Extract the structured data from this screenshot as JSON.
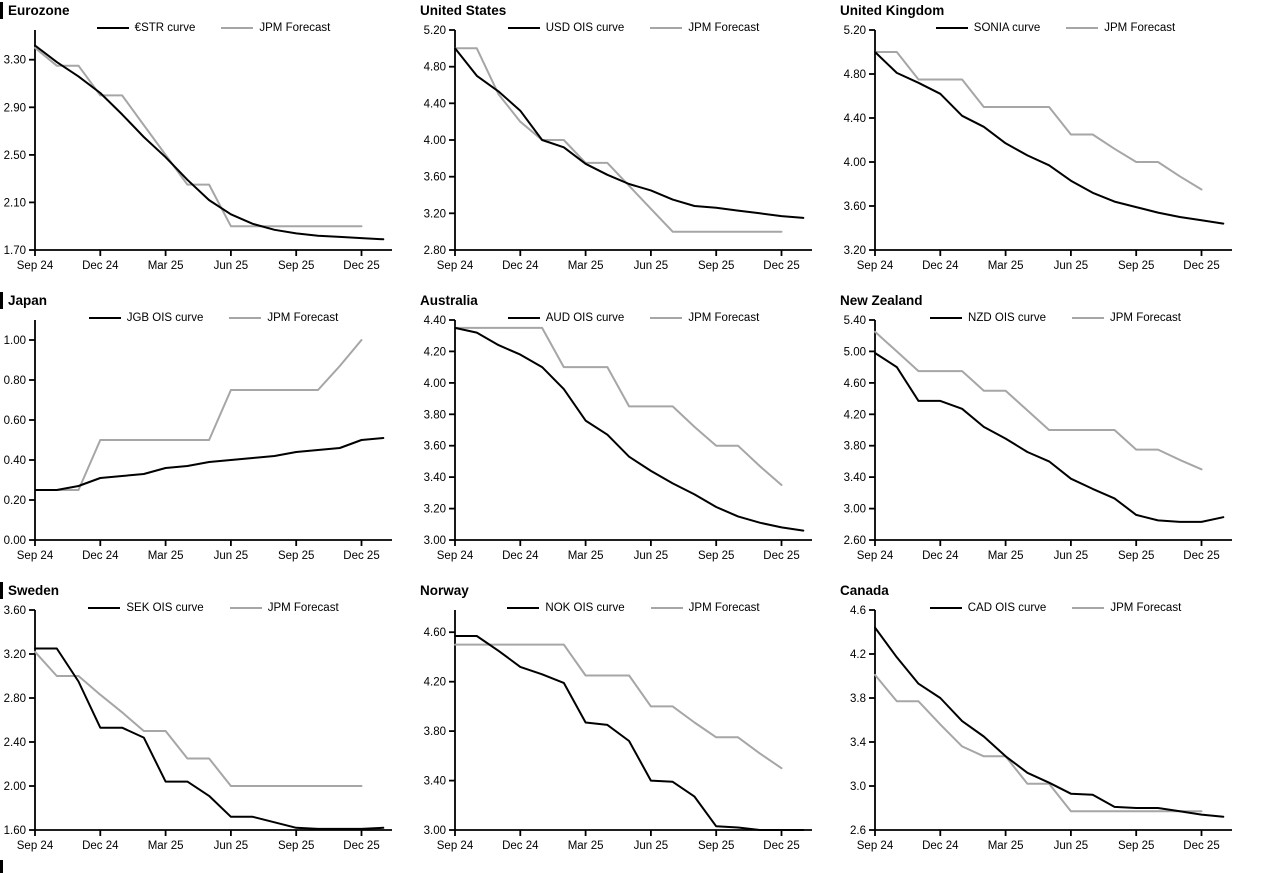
{
  "page": {
    "background": "#ffffff"
  },
  "colors": {
    "curve": "#000000",
    "forecast": "#a6a6a6",
    "axis": "#000000"
  },
  "chart_data": [
    {
      "title": "Eurozone",
      "type": "line",
      "x_tick_labels": [
        "Sep 24",
        "Dec 24",
        "Mar 25",
        "Jun 25",
        "Sep 25",
        "Dec 25"
      ],
      "x_tick_positions": [
        0,
        3,
        6,
        9,
        12,
        15
      ],
      "xlim": [
        0,
        16.4
      ],
      "ylim": [
        1.7,
        3.55
      ],
      "y_tick_values": [
        1.7,
        2.1,
        2.5,
        2.9,
        3.3
      ],
      "y_tick_labels": [
        "1.70",
        "2.10",
        "2.50",
        "2.90",
        "3.30"
      ],
      "grid": false,
      "legend_position": "top",
      "series": [
        {
          "name": "€STR curve",
          "color": "#000000",
          "values": [
            3.42,
            3.28,
            3.16,
            3.02,
            2.84,
            2.65,
            2.48,
            2.29,
            2.12,
            2.0,
            1.92,
            1.87,
            1.84,
            1.82,
            1.81,
            1.8,
            1.79
          ]
        },
        {
          "name": "JPM Forecast",
          "color": "#a6a6a6",
          "values": [
            3.4,
            3.25,
            3.25,
            3.0,
            3.0,
            2.75,
            2.5,
            2.25,
            2.25,
            1.9,
            1.9,
            1.9,
            1.9,
            1.9,
            1.9,
            1.9
          ]
        }
      ]
    },
    {
      "title": "United States",
      "type": "line",
      "x_tick_labels": [
        "Sep 24",
        "Dec 24",
        "Mar 25",
        "Jun 25",
        "Sep 25",
        "Dec 25"
      ],
      "x_tick_positions": [
        0,
        3,
        6,
        9,
        12,
        15
      ],
      "xlim": [
        0,
        16.4
      ],
      "ylim": [
        2.8,
        5.2
      ],
      "y_tick_values": [
        2.8,
        3.2,
        3.6,
        4.0,
        4.4,
        4.8,
        5.2
      ],
      "y_tick_labels": [
        "2.80",
        "3.20",
        "3.60",
        "4.00",
        "4.40",
        "4.80",
        "5.20"
      ],
      "grid": false,
      "legend_position": "top",
      "series": [
        {
          "name": "USD OIS curve",
          "color": "#000000",
          "values": [
            5.0,
            4.7,
            4.53,
            4.32,
            4.0,
            3.92,
            3.74,
            3.62,
            3.52,
            3.45,
            3.35,
            3.28,
            3.26,
            3.23,
            3.2,
            3.17,
            3.15
          ]
        },
        {
          "name": "JPM Forecast",
          "color": "#a6a6a6",
          "values": [
            5.0,
            5.0,
            4.5,
            4.2,
            4.0,
            4.0,
            3.75,
            3.75,
            3.5,
            3.25,
            3.0,
            3.0,
            3.0,
            3.0,
            3.0,
            3.0
          ]
        }
      ]
    },
    {
      "title": "United Kingdom",
      "type": "line",
      "x_tick_labels": [
        "Sep 24",
        "Dec 24",
        "Mar 25",
        "Jun 25",
        "Sep 25",
        "Dec 25"
      ],
      "x_tick_positions": [
        0,
        3,
        6,
        9,
        12,
        15
      ],
      "xlim": [
        0,
        16.4
      ],
      "ylim": [
        3.2,
        5.2
      ],
      "y_tick_values": [
        3.2,
        3.6,
        4.0,
        4.4,
        4.8,
        5.2
      ],
      "y_tick_labels": [
        "3.20",
        "3.60",
        "4.00",
        "4.40",
        "4.80",
        "5.20"
      ],
      "grid": false,
      "legend_position": "top",
      "series": [
        {
          "name": "SONIA curve",
          "color": "#000000",
          "values": [
            5.0,
            4.81,
            4.72,
            4.62,
            4.42,
            4.32,
            4.17,
            4.06,
            3.97,
            3.83,
            3.72,
            3.64,
            3.59,
            3.54,
            3.5,
            3.47,
            3.44
          ]
        },
        {
          "name": "JPM Forecast",
          "color": "#a6a6a6",
          "values": [
            5.0,
            5.0,
            4.75,
            4.75,
            4.75,
            4.5,
            4.5,
            4.5,
            4.5,
            4.25,
            4.25,
            4.12,
            4.0,
            4.0,
            3.87,
            3.75
          ]
        }
      ]
    },
    {
      "title": "Japan",
      "type": "line",
      "x_tick_labels": [
        "Sep 24",
        "Dec 24",
        "Mar 25",
        "Jun 25",
        "Sep 25",
        "Dec 25"
      ],
      "x_tick_positions": [
        0,
        3,
        6,
        9,
        12,
        15
      ],
      "xlim": [
        0,
        16.4
      ],
      "ylim": [
        0.0,
        1.1
      ],
      "y_tick_values": [
        0.0,
        0.2,
        0.4,
        0.6,
        0.8,
        1.0
      ],
      "y_tick_labels": [
        "0.00",
        "0.20",
        "0.40",
        "0.60",
        "0.80",
        "1.00"
      ],
      "grid": false,
      "legend_position": "top",
      "series": [
        {
          "name": "JGB OIS curve",
          "color": "#000000",
          "values": [
            0.25,
            0.25,
            0.27,
            0.31,
            0.32,
            0.33,
            0.36,
            0.37,
            0.39,
            0.4,
            0.41,
            0.42,
            0.44,
            0.45,
            0.46,
            0.5,
            0.51
          ]
        },
        {
          "name": "JPM Forecast",
          "color": "#a6a6a6",
          "values": [
            0.25,
            0.25,
            0.25,
            0.5,
            0.5,
            0.5,
            0.5,
            0.5,
            0.5,
            0.75,
            0.75,
            0.75,
            0.75,
            0.75,
            0.87,
            1.0
          ]
        }
      ]
    },
    {
      "title": "Australia",
      "type": "line",
      "x_tick_labels": [
        "Sep 24",
        "Dec 24",
        "Mar 25",
        "Jun 25",
        "Sep 25",
        "Dec 25"
      ],
      "x_tick_positions": [
        0,
        3,
        6,
        9,
        12,
        15
      ],
      "xlim": [
        0,
        16.4
      ],
      "ylim": [
        3.0,
        4.4
      ],
      "y_tick_values": [
        3.0,
        3.2,
        3.4,
        3.6,
        3.8,
        4.0,
        4.2,
        4.4
      ],
      "y_tick_labels": [
        "3.00",
        "3.20",
        "3.40",
        "3.60",
        "3.80",
        "4.00",
        "4.20",
        "4.40"
      ],
      "grid": false,
      "legend_position": "top",
      "series": [
        {
          "name": "AUD OIS curve",
          "color": "#000000",
          "values": [
            4.35,
            4.32,
            4.24,
            4.18,
            4.1,
            3.96,
            3.76,
            3.67,
            3.53,
            3.44,
            3.36,
            3.29,
            3.21,
            3.15,
            3.11,
            3.08,
            3.06
          ]
        },
        {
          "name": "JPM Forecast",
          "color": "#a6a6a6",
          "values": [
            4.35,
            4.35,
            4.35,
            4.35,
            4.35,
            4.1,
            4.1,
            4.1,
            3.85,
            3.85,
            3.85,
            3.72,
            3.6,
            3.6,
            3.47,
            3.35
          ]
        }
      ]
    },
    {
      "title": "New Zealand",
      "type": "line",
      "x_tick_labels": [
        "Sep 24",
        "Dec 24",
        "Mar 25",
        "Jun 25",
        "Sep 25",
        "Dec 25"
      ],
      "x_tick_positions": [
        0,
        3,
        6,
        9,
        12,
        15
      ],
      "xlim": [
        0,
        16.4
      ],
      "ylim": [
        2.6,
        5.4
      ],
      "y_tick_values": [
        2.6,
        3.0,
        3.4,
        3.8,
        4.2,
        4.6,
        5.0,
        5.4
      ],
      "y_tick_labels": [
        "2.60",
        "3.00",
        "3.40",
        "3.80",
        "4.20",
        "4.60",
        "5.00",
        "5.40"
      ],
      "grid": false,
      "legend_position": "top",
      "series": [
        {
          "name": "NZD OIS curve",
          "color": "#000000",
          "values": [
            4.98,
            4.8,
            4.37,
            4.37,
            4.27,
            4.04,
            3.89,
            3.72,
            3.6,
            3.38,
            3.25,
            3.13,
            2.92,
            2.85,
            2.83,
            2.83,
            2.89
          ]
        },
        {
          "name": "JPM Forecast",
          "color": "#a6a6a6",
          "values": [
            5.25,
            5.0,
            4.75,
            4.75,
            4.75,
            4.5,
            4.5,
            4.25,
            4.0,
            4.0,
            4.0,
            4.0,
            3.75,
            3.75,
            3.62,
            3.5
          ]
        }
      ]
    },
    {
      "title": "Sweden",
      "type": "line",
      "x_tick_labels": [
        "Sep 24",
        "Dec 24",
        "Mar 25",
        "Jun 25",
        "Sep 25",
        "Dec 25"
      ],
      "x_tick_positions": [
        0,
        3,
        6,
        9,
        12,
        15
      ],
      "xlim": [
        0,
        16.4
      ],
      "ylim": [
        1.6,
        3.6
      ],
      "y_tick_values": [
        1.6,
        2.0,
        2.4,
        2.8,
        3.2,
        3.6
      ],
      "y_tick_labels": [
        "1.60",
        "2.00",
        "2.40",
        "2.80",
        "3.20",
        "3.60"
      ],
      "grid": false,
      "legend_position": "top",
      "series": [
        {
          "name": "SEK OIS curve",
          "color": "#000000",
          "values": [
            3.25,
            3.25,
            2.95,
            2.53,
            2.53,
            2.44,
            2.04,
            2.04,
            1.91,
            1.72,
            1.72,
            1.67,
            1.62,
            1.61,
            1.61,
            1.61,
            1.62
          ]
        },
        {
          "name": "JPM Forecast",
          "color": "#a6a6a6",
          "values": [
            3.22,
            3.0,
            3.0,
            2.83,
            2.67,
            2.5,
            2.5,
            2.25,
            2.25,
            2.0,
            2.0,
            2.0,
            2.0,
            2.0,
            2.0,
            2.0
          ]
        }
      ]
    },
    {
      "title": "Norway",
      "type": "line",
      "x_tick_labels": [
        "Sep 24",
        "Dec 24",
        "Mar 25",
        "Jun 25",
        "Sep 25",
        "Dec 25"
      ],
      "x_tick_positions": [
        0,
        3,
        6,
        9,
        12,
        15
      ],
      "xlim": [
        0,
        16.4
      ],
      "ylim": [
        3.0,
        4.78
      ],
      "y_tick_values": [
        3.0,
        3.4,
        3.8,
        4.2,
        4.6
      ],
      "y_tick_labels": [
        "3.00",
        "3.40",
        "3.80",
        "4.20",
        "4.60"
      ],
      "grid": false,
      "legend_position": "top",
      "series": [
        {
          "name": "NOK OIS curve",
          "color": "#000000",
          "values": [
            4.57,
            4.57,
            4.45,
            4.32,
            4.26,
            4.19,
            3.87,
            3.85,
            3.72,
            3.4,
            3.39,
            3.27,
            3.03,
            3.02,
            3.0,
            3.0,
            3.0
          ]
        },
        {
          "name": "JPM Forecast",
          "color": "#a6a6a6",
          "values": [
            4.5,
            4.5,
            4.5,
            4.5,
            4.5,
            4.5,
            4.25,
            4.25,
            4.25,
            4.0,
            4.0,
            3.87,
            3.75,
            3.75,
            3.62,
            3.5
          ]
        }
      ]
    },
    {
      "title": "Canada",
      "type": "line",
      "x_tick_labels": [
        "Sep 24",
        "Dec 24",
        "Mar 25",
        "Jun 25",
        "Sep 25",
        "Dec 25"
      ],
      "x_tick_positions": [
        0,
        3,
        6,
        9,
        12,
        15
      ],
      "xlim": [
        0,
        16.4
      ],
      "ylim": [
        2.6,
        4.6
      ],
      "y_tick_values": [
        2.6,
        3.0,
        3.4,
        3.8,
        4.2,
        4.6
      ],
      "y_tick_labels": [
        "2.6",
        "3.0",
        "3.4",
        "3.8",
        "4.2",
        "4.6"
      ],
      "grid": false,
      "legend_position": "top",
      "series": [
        {
          "name": "CAD OIS curve",
          "color": "#000000",
          "values": [
            4.44,
            4.17,
            3.93,
            3.8,
            3.59,
            3.45,
            3.27,
            3.12,
            3.03,
            2.93,
            2.92,
            2.81,
            2.8,
            2.8,
            2.77,
            2.74,
            2.72
          ]
        },
        {
          "name": "JPM Forecast",
          "color": "#a6a6a6",
          "values": [
            4.01,
            3.77,
            3.77,
            3.56,
            3.36,
            3.27,
            3.27,
            3.02,
            3.02,
            2.77,
            2.77,
            2.77,
            2.77,
            2.77,
            2.77,
            2.77
          ]
        }
      ]
    }
  ]
}
